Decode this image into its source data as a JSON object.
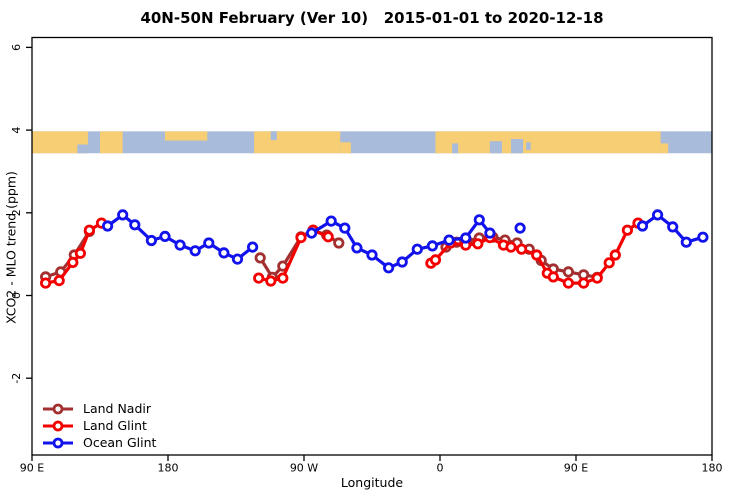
{
  "title": "40N-50N February (Ver 10)   2015-01-01 to 2020-12-18",
  "chart_data": {
    "type": "line",
    "title": "40N-50N February (Ver 10)   2015-01-01 to 2020-12-18",
    "xlabel": "Longitude",
    "ylabel": "XCO2 - MLO trend (ppm)",
    "xlim": [
      90,
      540
    ],
    "ylim": [
      -3.86,
      6.24
    ],
    "grid": false,
    "x_ticks": [
      {
        "pos": 90,
        "label": "90 E"
      },
      {
        "pos": 180,
        "label": "180"
      },
      {
        "pos": 270,
        "label": "90 W"
      },
      {
        "pos": 360,
        "label": "0"
      },
      {
        "pos": 450,
        "label": "90 E"
      },
      {
        "pos": 540,
        "label": "180"
      }
    ],
    "y_ticks": [
      {
        "pos": -2,
        "label": "-2"
      },
      {
        "pos": 0,
        "label": "0"
      },
      {
        "pos": 2,
        "label": "2"
      },
      {
        "pos": 4,
        "label": "4"
      },
      {
        "pos": 6,
        "label": "6"
      }
    ],
    "legend": {
      "position": "bottom-left",
      "entries": [
        "Land Nadir",
        "Land Glint",
        "Ocean Glint"
      ]
    },
    "series": [
      {
        "name": "Land Nadir",
        "color": "#A33030",
        "segments": [
          [
            [
              99,
              0.45
            ],
            [
              109,
              0.57
            ],
            [
              118,
              0.98
            ],
            [
              128,
              1.55
            ]
          ],
          [
            [
              241,
              0.91
            ],
            [
              249,
              0.44
            ],
            [
              256,
              0.71
            ],
            [
              268,
              1.42
            ],
            [
              276,
              1.58
            ],
            [
              285,
              1.46
            ],
            [
              293,
              1.27
            ]
          ],
          [
            [
              364,
              1.17
            ],
            [
              371,
              1.29
            ],
            [
              378,
              1.32
            ],
            [
              386,
              1.39
            ],
            [
              395,
              1.41
            ],
            [
              403,
              1.34
            ],
            [
              411,
              1.27
            ],
            [
              419,
              1.12
            ],
            [
              427,
              0.85
            ],
            [
              435,
              0.64
            ],
            [
              445,
              0.57
            ],
            [
              455,
              0.5
            ],
            [
              464,
              0.44
            ]
          ]
        ]
      },
      {
        "name": "Land Glint",
        "color": "#F40000",
        "segments": [
          [
            [
              99,
              0.3
            ],
            [
              108,
              0.36
            ],
            [
              117,
              0.8
            ],
            [
              122,
              1.02
            ],
            [
              128,
              1.58
            ],
            [
              136,
              1.75
            ]
          ],
          [
            [
              240,
              0.42
            ],
            [
              248,
              0.35
            ],
            [
              256,
              0.42
            ],
            [
              268,
              1.4
            ],
            [
              276,
              1.58
            ],
            [
              286,
              1.42
            ]
          ],
          [
            [
              354,
              0.78
            ],
            [
              357,
              0.86
            ],
            [
              367,
              1.27
            ],
            [
              377,
              1.22
            ],
            [
              385,
              1.25
            ],
            [
              393,
              1.4
            ],
            [
              402,
              1.22
            ],
            [
              407,
              1.17
            ],
            [
              414,
              1.12
            ],
            [
              424,
              0.98
            ],
            [
              431,
              0.54
            ],
            [
              435,
              0.45
            ],
            [
              445,
              0.3
            ],
            [
              455,
              0.3
            ],
            [
              464,
              0.42
            ],
            [
              472,
              0.79
            ],
            [
              476,
              0.98
            ],
            [
              484,
              1.58
            ],
            [
              491,
              1.75
            ]
          ]
        ]
      },
      {
        "name": "Ocean Glint",
        "color": "#1212EC",
        "segments": [
          [
            [
              140,
              1.68
            ],
            [
              150,
              1.95
            ],
            [
              158,
              1.71
            ],
            [
              169,
              1.33
            ],
            [
              178,
              1.43
            ],
            [
              188,
              1.22
            ],
            [
              198,
              1.08
            ],
            [
              207,
              1.27
            ],
            [
              217,
              1.03
            ],
            [
              226,
              0.88
            ],
            [
              236,
              1.17
            ]
          ],
          [
            [
              275,
              1.51
            ],
            [
              288,
              1.8
            ],
            [
              297,
              1.63
            ],
            [
              305,
              1.15
            ],
            [
              315,
              0.98
            ],
            [
              326,
              0.67
            ],
            [
              335,
              0.81
            ],
            [
              345,
              1.12
            ],
            [
              355,
              1.2
            ],
            [
              366,
              1.34
            ],
            [
              377,
              1.39
            ],
            [
              386,
              1.83
            ],
            [
              393,
              1.51
            ]
          ],
          [
            [
              413,
              1.63
            ]
          ],
          [
            [
              494,
              1.68
            ],
            [
              504,
              1.95
            ],
            [
              514,
              1.66
            ],
            [
              523,
              1.29
            ],
            [
              534,
              1.41
            ]
          ]
        ]
      }
    ],
    "map_band": {
      "description": "world coastline strip for latitude band 40N-50N",
      "y_top": 3.97,
      "y_bottom": 3.44,
      "land_color": "#F7CE74",
      "ocean_color": "#A8BBDA",
      "land_patches": [
        [
          90,
          127,
          0,
          1
        ],
        [
          135,
          150,
          0,
          1
        ],
        [
          178,
          206,
          0,
          0.42
        ],
        [
          237,
          294,
          0,
          1
        ],
        [
          294,
          301,
          0.5,
          1
        ],
        [
          357,
          506,
          0,
          1
        ],
        [
          506,
          511,
          0.55,
          1
        ]
      ],
      "ocean_patches": [
        [
          120,
          127,
          0.6,
          1
        ],
        [
          248,
          252,
          0,
          0.4
        ],
        [
          368,
          372,
          0.55,
          1
        ],
        [
          393,
          401,
          0.45,
          1
        ],
        [
          407,
          415,
          0.35,
          1
        ],
        [
          417,
          420,
          0.5,
          0.85
        ]
      ]
    }
  }
}
